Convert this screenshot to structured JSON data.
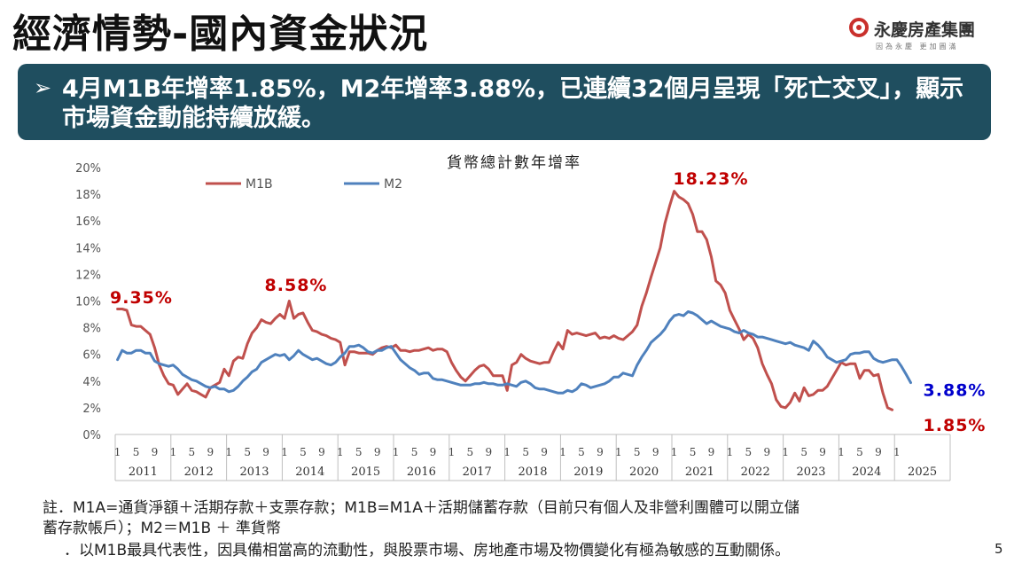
{
  "header": {
    "title": "經濟情勢-國內資金狀況",
    "logo_name": "永慶房產集團",
    "logo_slogan": "因為永慶 更加圓滿"
  },
  "banner": {
    "arrow": "➢",
    "text": "4月M1B年增率1.85%，M2年增率3.88%，已連續32個月呈現「死亡交叉」，顯示市場資金動能持續放緩。"
  },
  "chart_data": {
    "type": "line",
    "title": "貨幣總計數年增率",
    "xlabel": "",
    "ylabel": "",
    "ylim": [
      0,
      20
    ],
    "yticks": [
      "0%",
      "2%",
      "4%",
      "6%",
      "8%",
      "10%",
      "12%",
      "14%",
      "16%",
      "18%",
      "20%"
    ],
    "grid": false,
    "legend": "top-left",
    "month_tick_labels": [
      "1",
      "5",
      "9"
    ],
    "years": [
      "2011",
      "2012",
      "2013",
      "2014",
      "2015",
      "2016",
      "2017",
      "2018",
      "2019",
      "2020",
      "2021",
      "2022",
      "2023",
      "2024",
      "2025"
    ],
    "x_start": "2011-01",
    "series": [
      {
        "name": "M1B",
        "color": "#c0504d",
        "values": [
          9.4,
          9.4,
          9.3,
          8.2,
          8.1,
          8.1,
          7.8,
          7.5,
          6.5,
          5.2,
          4.4,
          3.8,
          3.7,
          3.0,
          3.4,
          3.8,
          3.3,
          3.2,
          3.0,
          2.8,
          3.5,
          3.7,
          3.9,
          4.9,
          4.4,
          5.5,
          5.8,
          5.7,
          6.8,
          7.6,
          8.0,
          8.6,
          8.4,
          8.3,
          8.7,
          9.0,
          8.7,
          10.0,
          8.7,
          9.0,
          9.1,
          8.4,
          7.8,
          7.7,
          7.5,
          7.4,
          7.2,
          7.1,
          6.9,
          5.2,
          6.2,
          6.2,
          6.1,
          6.1,
          6.1,
          6.0,
          6.3,
          6.5,
          6.6,
          6.5,
          6.7,
          6.3,
          6.3,
          6.2,
          6.3,
          6.3,
          6.4,
          6.5,
          6.3,
          6.4,
          6.4,
          6.2,
          5.4,
          4.8,
          4.3,
          4.0,
          4.4,
          4.8,
          5.1,
          5.2,
          4.9,
          4.4,
          4.4,
          4.4,
          3.3,
          5.2,
          5.4,
          6.0,
          5.7,
          5.5,
          5.4,
          5.3,
          5.4,
          5.4,
          6.2,
          6.9,
          6.4,
          7.8,
          7.5,
          7.6,
          7.5,
          7.4,
          7.5,
          7.6,
          7.2,
          7.3,
          7.2,
          7.4,
          7.2,
          7.1,
          7.4,
          7.7,
          8.2,
          9.6,
          10.6,
          11.8,
          12.9,
          14.0,
          15.8,
          17.1,
          18.23,
          17.8,
          17.6,
          17.3,
          16.5,
          15.2,
          15.2,
          14.6,
          13.3,
          11.5,
          11.2,
          10.6,
          9.3,
          8.6,
          7.9,
          7.1,
          7.5,
          7.2,
          6.5,
          5.3,
          4.5,
          3.8,
          2.6,
          2.1,
          2.0,
          2.4,
          3.1,
          2.5,
          3.5,
          2.9,
          3.0,
          3.3,
          3.3,
          3.6,
          4.2,
          4.8,
          5.4,
          5.2,
          5.3,
          5.3,
          4.2,
          4.8,
          4.8,
          4.4,
          4.5,
          3.1,
          2.0,
          1.85
        ]
      },
      {
        "name": "M2",
        "color": "#4f81bd",
        "values": [
          5.6,
          6.3,
          6.1,
          6.1,
          6.3,
          6.3,
          6.1,
          6.1,
          5.5,
          5.3,
          5.2,
          5.1,
          5.2,
          4.9,
          4.5,
          4.3,
          4.1,
          4.0,
          3.8,
          3.6,
          3.5,
          3.6,
          3.4,
          3.4,
          3.2,
          3.3,
          3.6,
          4.0,
          4.3,
          4.7,
          4.9,
          5.4,
          5.6,
          5.8,
          6.0,
          5.9,
          6.0,
          5.6,
          5.9,
          6.3,
          6.0,
          5.8,
          5.6,
          5.7,
          5.5,
          5.3,
          5.2,
          5.4,
          5.8,
          6.1,
          6.6,
          6.6,
          6.7,
          6.5,
          6.2,
          6.1,
          6.3,
          6.3,
          6.5,
          6.6,
          6.1,
          5.6,
          5.3,
          5.0,
          4.8,
          4.5,
          4.6,
          4.6,
          4.2,
          4.1,
          4.1,
          4.0,
          3.9,
          3.8,
          3.7,
          3.7,
          3.7,
          3.8,
          3.8,
          3.9,
          3.8,
          3.8,
          3.7,
          3.7,
          3.8,
          3.7,
          3.6,
          3.9,
          4.0,
          3.8,
          3.5,
          3.4,
          3.4,
          3.3,
          3.2,
          3.1,
          3.1,
          3.3,
          3.2,
          3.4,
          3.8,
          3.7,
          3.5,
          3.6,
          3.7,
          3.8,
          4.0,
          4.3,
          4.3,
          4.6,
          4.5,
          4.4,
          5.2,
          5.8,
          6.3,
          6.9,
          7.2,
          7.5,
          7.9,
          8.5,
          8.9,
          9.0,
          8.9,
          9.2,
          9.1,
          8.9,
          8.6,
          8.3,
          8.5,
          8.3,
          8.1,
          8.0,
          7.9,
          7.7,
          7.6,
          7.8,
          7.6,
          7.5,
          7.3,
          7.3,
          7.2,
          7.1,
          7.0,
          6.9,
          6.8,
          6.9,
          6.7,
          6.6,
          6.5,
          6.3,
          7.0,
          6.7,
          6.3,
          5.8,
          5.6,
          5.4,
          5.5,
          5.6,
          6.0,
          6.1,
          6.1,
          6.2,
          6.2,
          5.7,
          5.5,
          5.4,
          5.5,
          5.6,
          5.6,
          5.1,
          4.5,
          3.88
        ]
      }
    ],
    "annotations": [
      {
        "text": "9.35%",
        "series": "M1B"
      },
      {
        "text": "8.58%",
        "series": "M1B"
      },
      {
        "text": "18.23%",
        "series": "M1B"
      },
      {
        "text": "3.88%",
        "series": "M2"
      },
      {
        "text": "1.85%",
        "series": "M1B"
      }
    ]
  },
  "notes": [
    "註．M1A=通貨淨額＋活期存款＋支票存款；M1B=M1A＋活期儲蓄存款（目前只有個人及非營利團體可以開立儲",
    "蓄存款帳戶）；M2＝M1B ＋ 準貨幣",
    "．以M1B最具代表性，因具備相當高的流動性，與股票市場、房地產市場及物價變化有極為敏感的互動關係。"
  ],
  "page_number": "5"
}
